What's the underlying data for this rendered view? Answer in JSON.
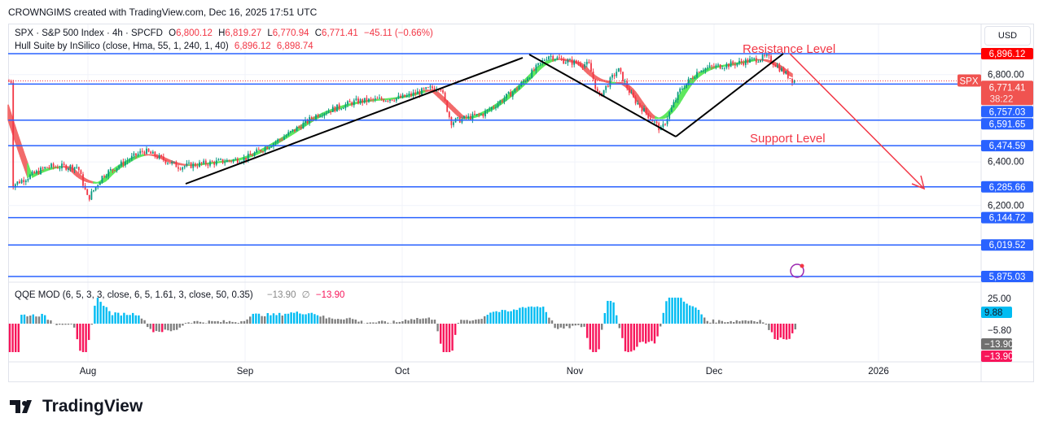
{
  "header": {
    "credit": "CROWNGIMS created with TradingView.com, Dec 16, 2025 17:51 UTC"
  },
  "legend": {
    "symbol": "SPX · S&P 500 Index · 4h · SPCFD",
    "o_label": "O",
    "open": "6,800.12",
    "h_label": "H",
    "high": "6,819.27",
    "l_label": "L",
    "low": "6,770.94",
    "c_label": "C",
    "close": "6,771.41",
    "change": "−45.11 (−0.66%)",
    "hull": "Hull Suite by InSilico (close, Hma, 55, 1, 240, 1, 40)",
    "hull_v1": "6,896.12",
    "hull_v2": "6,898.74",
    "qqe": "QQE MOD (6, 5, 3, 3, close, 6, 5, 1.61, 3, close, 50, 0.35)",
    "qqe_v1": "−13.90",
    "qqe_sym": "∅",
    "qqe_v2": "−13.90"
  },
  "currency": "USD",
  "annotations": {
    "resistance": "Resistance Level",
    "support": "Support Level"
  },
  "price_tag": {
    "symbol": "SPX",
    "price": "6,771.41",
    "countdown": "38:22"
  },
  "logo": "TradingView",
  "colors": {
    "up": "#089981",
    "down": "#f23645",
    "level": "#2962ff",
    "hull_up": "#5ee85e",
    "hull_down": "#f26b6b",
    "qqe_up": "#00bcf2",
    "qqe_down": "#f7155a",
    "qqe_neutral": "#808080"
  },
  "chart_data": {
    "type": "candlestick",
    "timeframe": "4h",
    "x_ticks": [
      "Aug",
      "Sep",
      "Oct",
      "Nov",
      "Dec",
      "2026"
    ],
    "y_ticks": [
      "6,800.00",
      "6,400.00",
      "6,200.00"
    ],
    "ylim": [
      5840,
      6960
    ],
    "levels": [
      {
        "value": 6896.12,
        "label": "6,896.12",
        "type": "hull"
      },
      {
        "value": 6757.03,
        "label": "6,757.03"
      },
      {
        "value": 6591.65,
        "label": "6,591.65"
      },
      {
        "value": 6474.59,
        "label": "6,474.59"
      },
      {
        "value": 6285.66,
        "label": "6,285.66"
      },
      {
        "value": 6144.72,
        "label": "6,144.72"
      },
      {
        "value": 6019.52,
        "label": "6,019.52"
      },
      {
        "value": 5875.03,
        "label": "5,875.03"
      }
    ],
    "last_price": 6771.41,
    "close_path": [
      [
        "2025-07-17",
        6292
      ],
      [
        "2025-07-24",
        6378
      ],
      [
        "2025-07-30",
        6378
      ],
      [
        "2025-08-01",
        6229
      ],
      [
        "2025-08-04",
        6340
      ],
      [
        "2025-08-12",
        6452
      ],
      [
        "2025-08-19",
        6378
      ],
      [
        "2025-09-01",
        6415
      ],
      [
        "2025-09-08",
        6508
      ],
      [
        "2025-09-15",
        6620
      ],
      [
        "2025-09-22",
        6676
      ],
      [
        "2025-10-01",
        6695
      ],
      [
        "2025-10-08",
        6750
      ],
      [
        "2025-10-10",
        6583
      ],
      [
        "2025-10-16",
        6620
      ],
      [
        "2025-10-22",
        6732
      ],
      [
        "2025-10-28",
        6889
      ],
      [
        "2025-10-31",
        6863
      ],
      [
        "2025-11-05",
        6844
      ],
      [
        "2025-11-07",
        6695
      ],
      [
        "2025-11-11",
        6825
      ],
      [
        "2025-11-14",
        6695
      ],
      [
        "2025-11-20",
        6545
      ],
      [
        "2025-11-24",
        6732
      ],
      [
        "2025-11-28",
        6825
      ],
      [
        "2025-12-05",
        6851
      ],
      [
        "2025-12-11",
        6881
      ],
      [
        "2025-12-16",
        6771
      ]
    ],
    "qqe": {
      "y_ticks": [
        "25.00",
        "-5.80"
      ],
      "last": 9.88,
      "trend": -13.9,
      "signal": -13.9
    }
  }
}
